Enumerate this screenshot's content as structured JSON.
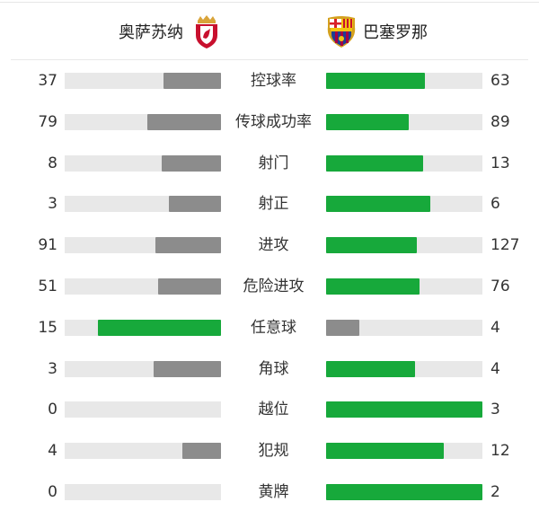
{
  "home": {
    "name": "奥萨苏纳",
    "crest": "osasuna-crest"
  },
  "away": {
    "name": "巴塞罗那",
    "crest": "barcelona-crest"
  },
  "colors": {
    "leader": "#17a93b",
    "trailer": "#8c8c8c",
    "track": "#e8e8e8"
  },
  "stats": [
    {
      "label": "控球率",
      "home": 37,
      "away": 63
    },
    {
      "label": "传球成功率",
      "home": 79,
      "away": 89
    },
    {
      "label": "射门",
      "home": 8,
      "away": 13
    },
    {
      "label": "射正",
      "home": 3,
      "away": 6
    },
    {
      "label": "进攻",
      "home": 91,
      "away": 127
    },
    {
      "label": "危险进攻",
      "home": 51,
      "away": 76
    },
    {
      "label": "任意球",
      "home": 15,
      "away": 4
    },
    {
      "label": "角球",
      "home": 3,
      "away": 4
    },
    {
      "label": "越位",
      "home": 0,
      "away": 3
    },
    {
      "label": "犯规",
      "home": 4,
      "away": 12
    },
    {
      "label": "黄牌",
      "home": 0,
      "away": 2
    }
  ]
}
